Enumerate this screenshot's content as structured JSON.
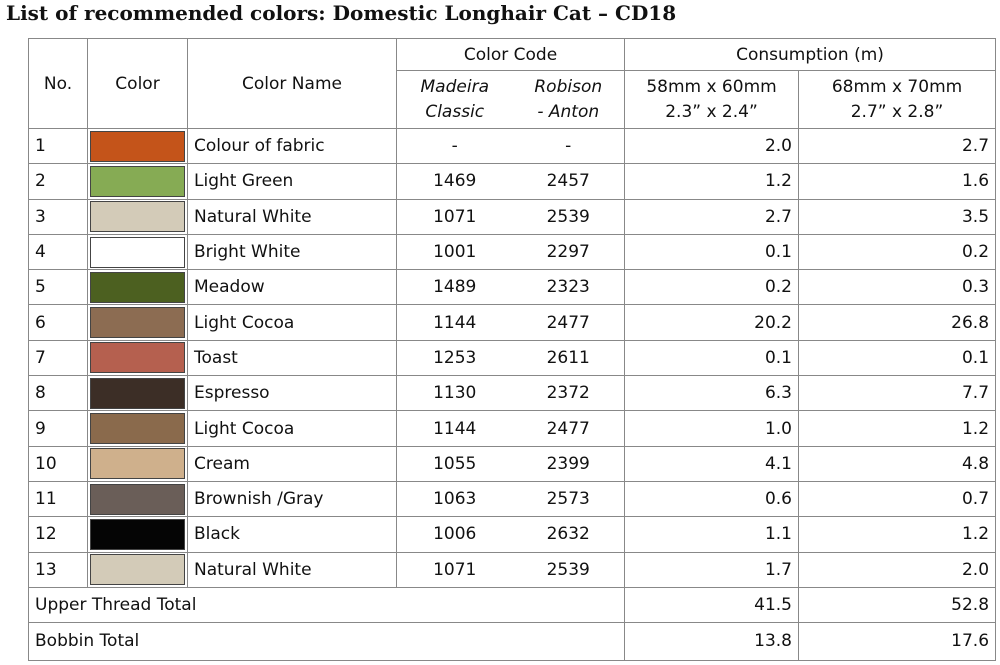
{
  "title": "List of recommended colors:  Domestic Longhair Cat – CD18",
  "table": {
    "headers": {
      "no": "No.",
      "color": "Color",
      "color_name": "Color Name",
      "color_code": "Color Code",
      "consumption": "Consumption (m)",
      "madeira": [
        "Madeira",
        "Classic"
      ],
      "robison": [
        "Robison",
        "- Anton"
      ],
      "size1": [
        "58mm x 60mm",
        "2.3” x 2.4”"
      ],
      "size2": [
        "68mm x 70mm",
        "2.7” x 2.8”"
      ]
    },
    "rows": [
      {
        "no": "1",
        "color": "#c4541a",
        "name": "Colour of fabric",
        "madeira": "-",
        "robison": "-",
        "c1": "2.0",
        "c2": "2.7"
      },
      {
        "no": "2",
        "color": "#86ab54",
        "name": "Light Green",
        "madeira": "1469",
        "robison": "2457",
        "c1": "1.2",
        "c2": "1.6"
      },
      {
        "no": "3",
        "color": "#d3cbb8",
        "name": "Natural White",
        "madeira": "1071",
        "robison": "2539",
        "c1": "2.7",
        "c2": "3.5"
      },
      {
        "no": "4",
        "color": "#ffffff",
        "name": "Bright White",
        "madeira": "1001",
        "robison": "2297",
        "c1": "0.1",
        "c2": "0.2"
      },
      {
        "no": "5",
        "color": "#4c6020",
        "name": "Meadow",
        "madeira": "1489",
        "robison": "2323",
        "c1": "0.2",
        "c2": "0.3"
      },
      {
        "no": "6",
        "color": "#8c6c52",
        "name": "Light Cocoa",
        "madeira": "1144",
        "robison": "2477",
        "c1": "20.2",
        "c2": "26.8"
      },
      {
        "no": "7",
        "color": "#b5604f",
        "name": "Toast",
        "madeira": "1253",
        "robison": "2611",
        "c1": "0.1",
        "c2": "0.1"
      },
      {
        "no": "8",
        "color": "#3c2e26",
        "name": "Espresso",
        "madeira": "1130",
        "robison": "2372",
        "c1": "6.3",
        "c2": "7.7"
      },
      {
        "no": "9",
        "color": "#8a6a4c",
        "name": "Light Cocoa",
        "madeira": "1144",
        "robison": "2477",
        "c1": "1.0",
        "c2": "1.2"
      },
      {
        "no": "10",
        "color": "#cfb08c",
        "name": "Cream",
        "madeira": "1055",
        "robison": "2399",
        "c1": "4.1",
        "c2": "4.8"
      },
      {
        "no": "11",
        "color": "#6a5e58",
        "name": "Brownish /Gray",
        "madeira": "1063",
        "robison": "2573",
        "c1": "0.6",
        "c2": "0.7"
      },
      {
        "no": "12",
        "color": "#050505",
        "name": "Black",
        "madeira": "1006",
        "robison": "2632",
        "c1": "1.1",
        "c2": "1.2"
      },
      {
        "no": "13",
        "color": "#d3cbb8",
        "name": "Natural White",
        "madeira": "1071",
        "robison": "2539",
        "c1": "1.7",
        "c2": "2.0"
      }
    ],
    "totals": [
      {
        "label": "Upper Thread Total",
        "c1": "41.5",
        "c2": "52.8"
      },
      {
        "label": "Bobbin Total",
        "c1": "13.8",
        "c2": "17.6"
      }
    ]
  }
}
